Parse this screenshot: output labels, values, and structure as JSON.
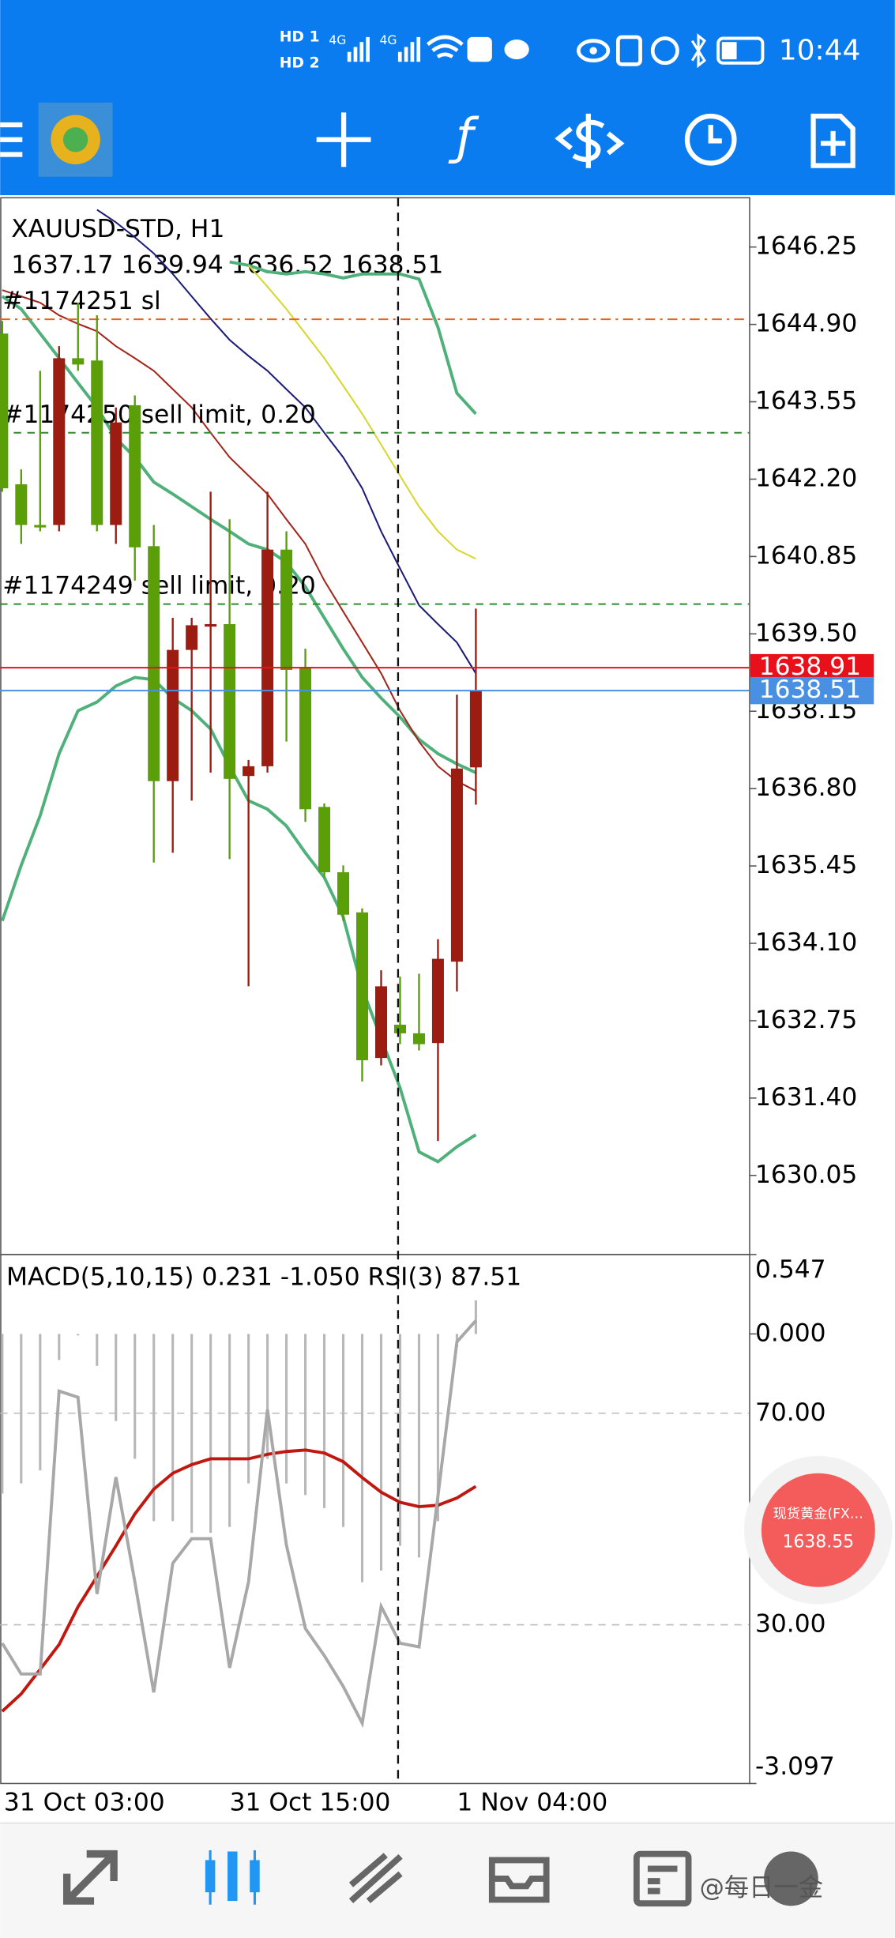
{
  "status_bar": {
    "hd": [
      "HD 1",
      "HD 2"
    ],
    "network": [
      "4G",
      "4G"
    ],
    "time": "10:44"
  },
  "chart_data": [
    {
      "type": "candlestick",
      "title": "XAUUSD-STD, H1",
      "subtitle": "1637.17 1639.94 1636.52 1638.51",
      "categories": [
        "31 Oct 03:00",
        null,
        null,
        null,
        null,
        null,
        null,
        null,
        null,
        null,
        null,
        null,
        "31 Oct 15:00",
        null,
        null,
        null,
        null,
        null,
        null,
        null,
        null,
        null,
        null,
        null,
        "1 Nov 04:00",
        null
      ],
      "open": [
        1644.74,
        1642.11,
        1641.4,
        1641.4,
        1644.31,
        1644.27,
        1641.4,
        1643.49,
        1641.03,
        1636.93,
        1639.22,
        1639.65,
        1639.67,
        1637.02,
        1637.19,
        1640.97,
        1638.92,
        1636.48,
        1635.34,
        1634.64,
        1632.1,
        1632.68,
        1632.53,
        1632.36,
        1633.78,
        1637.17
      ],
      "high": [
        1644.96,
        1642.37,
        1644.09,
        1644.52,
        1645.28,
        1645.06,
        1643.45,
        1643.66,
        1641.4,
        1639.78,
        1639.78,
        1641.98,
        1641.5,
        1637.3,
        1641.98,
        1641.29,
        1639.24,
        1636.54,
        1635.46,
        1634.71,
        1633.63,
        1633.52,
        1633.57,
        1634.17,
        1638.44,
        1639.94
      ],
      "low": [
        1641.98,
        1641.07,
        1641.29,
        1641.29,
        1644.09,
        1641.29,
        1641.07,
        1640.43,
        1635.51,
        1635.68,
        1636.59,
        1637.08,
        1635.57,
        1633.35,
        1637.08,
        1637.62,
        1636.22,
        1635.25,
        1634.49,
        1631.69,
        1631.97,
        1632.34,
        1632.23,
        1630.65,
        1633.26,
        1636.52
      ],
      "close": [
        1642.04,
        1641.4,
        1641.4,
        1644.31,
        1644.2,
        1641.4,
        1643.19,
        1641.01,
        1636.93,
        1639.22,
        1639.65,
        1639.67,
        1636.97,
        1637.19,
        1640.97,
        1638.87,
        1636.44,
        1635.34,
        1634.6,
        1632.06,
        1633.35,
        1632.53,
        1632.34,
        1633.83,
        1637.15,
        1638.51
      ],
      "up_color": "#9c1c12",
      "down_color": "#5a9e08",
      "series": [
        {
          "color": "#4fb07a",
          "values": [
            null,
            null,
            null,
            null,
            null,
            null,
            null,
            null,
            null,
            null,
            null,
            null,
            1645.99,
            1645.93,
            1645.82,
            1645.78,
            1645.82,
            1645.78,
            1645.71,
            1645.78,
            1645.78,
            1645.78,
            1645.69,
            1644.85,
            1643.7,
            1643.34
          ]
        },
        {
          "color": "#4fb07a",
          "values": [
            1645.39,
            1645.17,
            1644.74,
            1644.31,
            1643.88,
            1643.45,
            1642.91,
            1642.58,
            1642.15,
            1641.94,
            1641.72,
            1641.5,
            1641.29,
            1641.07,
            1640.97,
            1640.75,
            1640.32,
            1639.78,
            1639.24,
            1638.74,
            1638.38,
            1638.05,
            1637.66,
            1637.41,
            1637.23,
            1637.08
          ]
        },
        {
          "color": "#4fb07a",
          "values": [
            1634.49,
            1635.46,
            1636.33,
            1637.41,
            1638.16,
            1638.31,
            1638.59,
            1638.74,
            1638.7,
            1638.38,
            1638.16,
            1637.84,
            1637.19,
            1636.59,
            1636.44,
            1636.15,
            1635.68,
            1635.25,
            1634.56,
            1633.31,
            1632.44,
            1631.58,
            1630.46,
            1630.29,
            1630.55,
            1630.76
          ]
        },
        {
          "color": "#a3261c",
          "values": [
            1645.5,
            1645.39,
            1645.28,
            1645.06,
            1644.91,
            1644.78,
            1644.52,
            1644.31,
            1644.09,
            1643.77,
            1643.45,
            1643.01,
            1642.58,
            1642.26,
            1641.94,
            1641.5,
            1641.07,
            1640.43,
            1639.89,
            1639.35,
            1638.81,
            1638.16,
            1637.62,
            1637.19,
            1636.93,
            1636.76
          ]
        },
        {
          "color": "#1c1c78",
          "values": [
            null,
            null,
            null,
            null,
            null,
            1646.9,
            1646.68,
            1646.42,
            1646.14,
            1645.78,
            1645.39,
            1645.0,
            1644.63,
            1644.35,
            1644.09,
            1643.77,
            1643.45,
            1643.01,
            1642.58,
            1642.04,
            1641.29,
            1640.64,
            1640.0,
            1639.67,
            1639.35,
            1638.81
          ]
        },
        {
          "color": "#d8d62c",
          "values": [
            null,
            null,
            null,
            null,
            null,
            null,
            null,
            null,
            null,
            null,
            null,
            null,
            null,
            1645.93,
            1645.56,
            1645.17,
            1644.74,
            1644.31,
            1643.83,
            1643.34,
            1642.8,
            1642.26,
            1641.72,
            1641.29,
            1640.97,
            1640.81
          ]
        }
      ],
      "ylim": [
        1628.67,
        1647.11
      ],
      "yticks": [
        1646.25,
        {
          "value": 1644.9,
          "label": "1644.90"
        },
        1643.55,
        {
          "value": 1642.2,
          "label": "1642.20"
        },
        1640.85,
        {
          "value": 1639.5,
          "label": "1639.50"
        },
        1638.15,
        {
          "value": 1636.8,
          "label": "1636.80"
        },
        1635.45,
        {
          "value": 1634.1,
          "label": "1634.10"
        },
        1632.75,
        {
          "value": 1631.4,
          "label": "1631.40"
        },
        1630.05
      ],
      "hlines": [
        {
          "value": 1644.99,
          "label": "#1174251 sl",
          "color": "#e0641e",
          "dash": "8,4,2,4"
        },
        {
          "value": 1643.01,
          "label": "#1174250 sell limit, 0.20",
          "color": "#2e8b2e",
          "dash": "6,5"
        },
        {
          "value": 1640.02,
          "label": "#1174249 sell limit, 0.20",
          "color": "#2e8b2e",
          "dash": "6,5"
        }
      ],
      "price_lines": [
        {
          "value": 1638.91,
          "color": "#e8101a"
        },
        {
          "value": 1638.51,
          "color": "#4a90e2"
        }
      ]
    },
    {
      "type": "line",
      "title": "MACD(5,10,15) 0.231 -1.050 RSI(3) 87.51",
      "series": [
        {
          "type": "bar",
          "color": "#b8b8b8",
          "values": [
            -1.1,
            -1.03,
            -0.94,
            -0.18,
            -0.01,
            -0.22,
            -0.6,
            -0.86,
            -1.29,
            -1.29,
            -1.37,
            -1.37,
            -1.33,
            -1.03,
            -0.86,
            -1.03,
            -1.11,
            -1.2,
            -1.33,
            -1.71,
            -1.63,
            -1.46,
            -1.54,
            -1.29,
            -0.09,
            0.231
          ]
        },
        {
          "type": "line",
          "color": "#c0180f",
          "values": [
            -2.6,
            -2.48,
            -2.31,
            -2.14,
            -1.88,
            -1.67,
            -1.46,
            -1.24,
            -1.07,
            -0.96,
            -0.9,
            -0.86,
            -0.86,
            -0.86,
            -0.83,
            -0.81,
            -0.8,
            -0.82,
            -0.88,
            -0.99,
            -1.09,
            -1.16,
            -1.19,
            -1.18,
            -1.13,
            -1.05
          ]
        },
        {
          "type": "line",
          "axis": "y2",
          "color": "#a8a8a8",
          "values": [
            26.51,
            20.7,
            20.7,
            74.19,
            73.02,
            35.81,
            57.91,
            38.14,
            17.21,
            41.63,
            46.28,
            46.28,
            21.86,
            38.14,
            70.7,
            45.12,
            29.3,
            24.19,
            18.37,
            11.4,
            33.49,
            26.51,
            25.81,
            54.42,
            83.49,
            87.51
          ]
        }
      ],
      "ylim": [
        -3.097,
        0.547
      ],
      "yticks": [
        0.547,
        {
          "value": 0,
          "label": "0.000"
        },
        -3.097
      ],
      "y2lim": [
        0,
        100
      ],
      "y2ticks": [
        {
          "value": 70,
          "label": "70.00"
        },
        {
          "value": 30,
          "label": "30.00"
        }
      ],
      "y2grid": true
    }
  ],
  "quote_widget": {
    "title": "现货黄金(FX…",
    "price": "1638.55"
  },
  "watermark": "@每日一金"
}
